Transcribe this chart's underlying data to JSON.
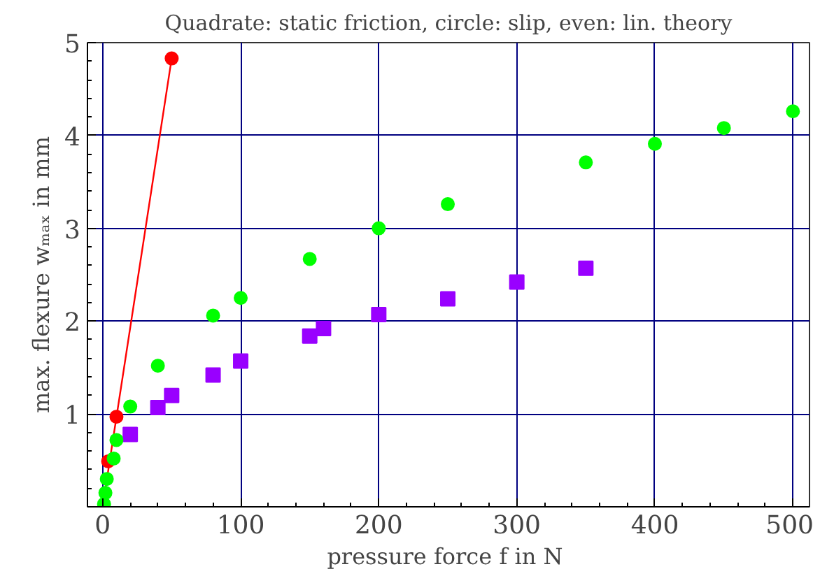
{
  "chart_data": {
    "type": "scatter",
    "title": "Quadrate: static friction, circle: slip, even: lin. theory",
    "xlabel": "pressure force f  in N",
    "ylabel": "max. flexure wₘₐₓ in mm",
    "xlim": [
      -11,
      512
    ],
    "ylim": [
      0,
      5
    ],
    "xticks": [
      0,
      100,
      200,
      300,
      400,
      500
    ],
    "yticks": [
      1,
      2,
      3,
      4,
      5
    ],
    "grid": true,
    "series": [
      {
        "type": "line",
        "color": "#ff0000",
        "marker": "none",
        "x": [
          0,
          50
        ],
        "values": [
          0,
          4.83
        ]
      },
      {
        "color": "#ff0000",
        "marker": "circle",
        "x": [
          4,
          10,
          50
        ],
        "values": [
          0.49,
          0.97,
          4.83
        ]
      },
      {
        "color": "#9900ff",
        "marker": "square",
        "x": [
          20,
          40,
          50,
          80,
          100,
          150,
          160,
          200,
          250,
          300,
          350
        ],
        "values": [
          0.78,
          1.07,
          1.2,
          1.42,
          1.57,
          1.84,
          1.92,
          2.07,
          2.24,
          2.42,
          2.57
        ]
      },
      {
        "color": "#00ff00",
        "marker": "circle",
        "x": [
          1,
          2,
          3,
          8,
          10,
          20,
          40,
          80,
          100,
          150,
          200,
          250,
          350,
          400,
          450,
          500
        ],
        "values": [
          0.03,
          0.15,
          0.3,
          0.52,
          0.72,
          1.08,
          1.52,
          2.06,
          2.25,
          2.67,
          3.0,
          3.26,
          3.71,
          3.91,
          4.08,
          4.26
        ]
      }
    ]
  }
}
